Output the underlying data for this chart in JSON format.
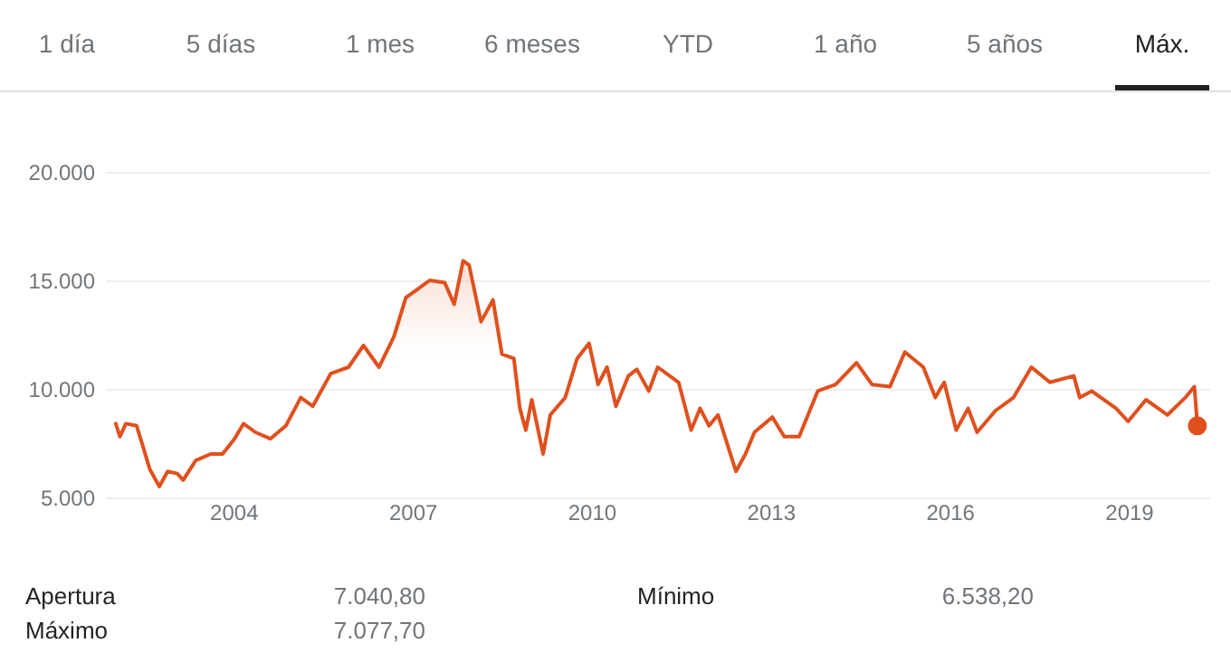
{
  "chart_data": {
    "type": "area",
    "annotations": [
      "1 día",
      "5 días",
      "1 mes",
      "6 meses",
      "YTD",
      "1 año",
      "5 años",
      "Máx.",
      "Apertura",
      "7.040,80",
      "Mínimo",
      "6.538,20",
      "Máximo",
      "7.077,70"
    ],
    "xlim": [
      2001.85,
      2020.35
    ],
    "xticks": [
      2004,
      2007,
      2010,
      2013,
      2016,
      2019
    ],
    "ylim": [
      5000,
      20000
    ],
    "yticks": [
      {
        "value": 5000,
        "label": "5.000"
      },
      {
        "value": 10000,
        "label": "10.000"
      },
      {
        "value": 15000,
        "label": "15.000"
      },
      {
        "value": 20000,
        "label": "20.000"
      }
    ],
    "grid": "y",
    "marker": "none",
    "series": [
      {
        "color": "#e0501e",
        "x": [
          2002.03,
          2002.1,
          2002.2,
          2002.38,
          2002.48,
          2002.6,
          2002.76,
          2002.9,
          2003.06,
          2003.16,
          2003.37,
          2003.62,
          2003.82,
          2004.02,
          2004.17,
          2004.37,
          2004.62,
          2004.88,
          2005.13,
          2005.33,
          2005.63,
          2005.93,
          2006.18,
          2006.44,
          2006.69,
          2006.89,
          2007.09,
          2007.29,
          2007.54,
          2007.7,
          2007.85,
          2007.95,
          2008.15,
          2008.35,
          2008.5,
          2008.7,
          2008.8,
          2008.9,
          2009.0,
          2009.19,
          2009.31,
          2009.56,
          2009.76,
          2009.96,
          2010.11,
          2010.26,
          2010.41,
          2010.62,
          2010.76,
          2010.96,
          2011.11,
          2011.46,
          2011.67,
          2011.82,
          2011.97,
          2012.12,
          2012.42,
          2012.58,
          2012.73,
          2013.03,
          2013.23,
          2013.48,
          2013.79,
          2014.09,
          2014.44,
          2014.7,
          2015.0,
          2015.25,
          2015.56,
          2015.76,
          2015.91,
          2016.11,
          2016.31,
          2016.46,
          2016.77,
          2017.07,
          2017.37,
          2017.68,
          2018.08,
          2018.18,
          2018.38,
          2018.79,
          2018.99,
          2019.29,
          2019.65,
          2019.95,
          2020.1,
          2020.15
        ],
        "values": [
          8400,
          7800,
          8400,
          8300,
          7400,
          6300,
          5500,
          6200,
          6100,
          5800,
          6700,
          7000,
          7000,
          7700,
          8400,
          8000,
          7700,
          8300,
          9600,
          9200,
          10700,
          11000,
          12000,
          11000,
          12400,
          14200,
          14600,
          15000,
          14900,
          13900,
          15900,
          15700,
          13100,
          14100,
          11600,
          11400,
          9100,
          8100,
          9500,
          7000,
          8800,
          9600,
          11400,
          12100,
          10200,
          11000,
          9200,
          10600,
          10900,
          9900,
          11000,
          10300,
          8100,
          9100,
          8300,
          8800,
          6200,
          7000,
          8000,
          8700,
          7800,
          7800,
          9900,
          10200,
          11200,
          10200,
          10100,
          11700,
          11000,
          9600,
          10300,
          8100,
          9100,
          8000,
          9000,
          9600,
          11000,
          10300,
          10600,
          9600,
          9900,
          9100,
          8500,
          9500,
          8800,
          9600,
          10100,
          8400
        ]
      },
      {
        "type": "scatter",
        "color": "#e0501e",
        "marker": "circle",
        "x": [
          2020.15
        ],
        "values": [
          8300
        ]
      }
    ]
  }
}
